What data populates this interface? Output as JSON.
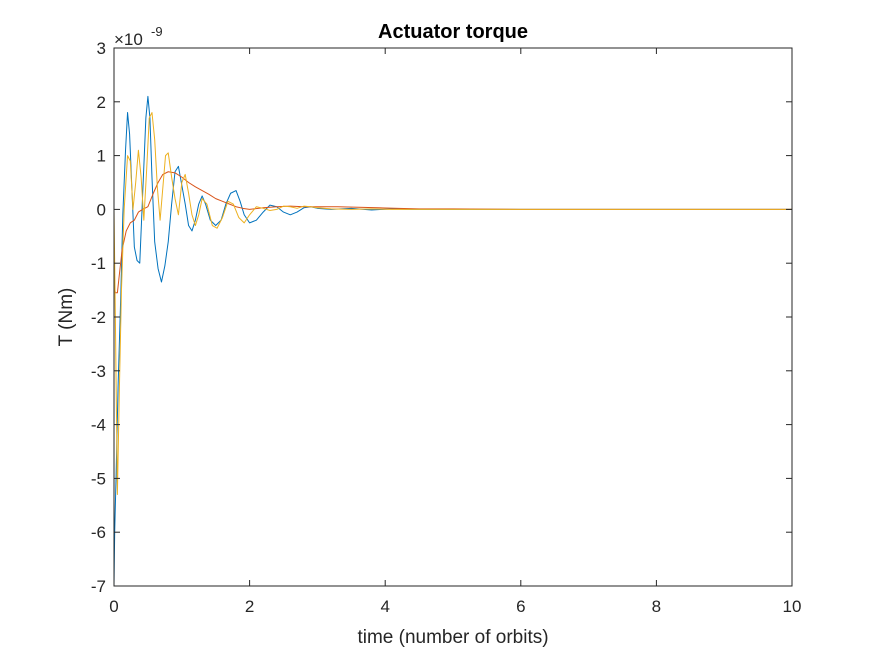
{
  "chart_data": {
    "type": "line",
    "title": "Actuator torque",
    "xlabel": "time (number of orbits)",
    "ylabel": "T (Nm)",
    "y_multiplier_label": "×10",
    "y_multiplier_exponent": "-9",
    "xlim": [
      0,
      10
    ],
    "ylim": [
      -7,
      3
    ],
    "x_ticks": [
      0,
      2,
      4,
      6,
      8,
      10
    ],
    "y_ticks": [
      3,
      2,
      1,
      0,
      -1,
      -2,
      -3,
      -4,
      -5,
      -6,
      -7
    ],
    "grid": false,
    "series": [
      {
        "color": "#0072BD",
        "x": [
          0,
          0.01,
          0.03,
          0.06,
          0.1,
          0.13,
          0.17,
          0.2,
          0.23,
          0.27,
          0.3,
          0.34,
          0.38,
          0.42,
          0.47,
          0.5,
          0.53,
          0.56,
          0.6,
          0.65,
          0.7,
          0.75,
          0.8,
          0.85,
          0.9,
          0.95,
          1.0,
          1.05,
          1.1,
          1.15,
          1.2,
          1.25,
          1.3,
          1.35,
          1.42,
          1.5,
          1.58,
          1.65,
          1.72,
          1.8,
          1.86,
          1.92,
          2.0,
          2.1,
          2.2,
          2.3,
          2.4,
          2.5,
          2.6,
          2.7,
          2.8,
          2.9,
          3.0,
          3.2,
          3.5,
          3.8,
          4.1,
          4.4,
          5.0,
          6.0,
          7.0,
          8.0,
          9.0,
          10.0
        ],
        "values": [
          -7.0,
          -6.0,
          -5.0,
          -3.3,
          -1.6,
          -0.1,
          1.1,
          1.8,
          1.4,
          0.2,
          -0.7,
          -0.95,
          -1.0,
          0.2,
          1.7,
          2.1,
          1.7,
          0.6,
          -0.6,
          -1.1,
          -1.35,
          -1.05,
          -0.6,
          0.1,
          0.7,
          0.8,
          0.45,
          0.1,
          -0.3,
          -0.4,
          -0.2,
          0.1,
          0.25,
          0.1,
          -0.2,
          -0.3,
          -0.2,
          0.1,
          0.3,
          0.35,
          0.15,
          -0.1,
          -0.25,
          -0.2,
          -0.05,
          0.08,
          0.05,
          -0.05,
          -0.1,
          -0.05,
          0.03,
          0.05,
          0.02,
          0.0,
          0.02,
          -0.01,
          0.01,
          0.0,
          0.0,
          0.0,
          0.0,
          0.0,
          0.0,
          0.0
        ]
      },
      {
        "color": "#D95319",
        "x": [
          0,
          0.02,
          0.05,
          0.08,
          0.12,
          0.18,
          0.24,
          0.3,
          0.36,
          0.42,
          0.5,
          0.58,
          0.65,
          0.72,
          0.8,
          0.9,
          1.0,
          1.1,
          1.2,
          1.3,
          1.4,
          1.5,
          1.6,
          1.7,
          1.8,
          1.9,
          2.0,
          2.2,
          2.4,
          2.6,
          2.8,
          3.0,
          3.3,
          3.6,
          3.9,
          4.2,
          4.5,
          5.0,
          6.0,
          7.0,
          8.0,
          9.0,
          10.0
        ],
        "values": [
          -1.4,
          -1.55,
          -1.55,
          -1.2,
          -0.75,
          -0.4,
          -0.25,
          -0.2,
          -0.05,
          0.0,
          0.05,
          0.3,
          0.5,
          0.65,
          0.7,
          0.68,
          0.6,
          0.5,
          0.42,
          0.35,
          0.28,
          0.2,
          0.15,
          0.1,
          0.05,
          0.02,
          0.0,
          0.03,
          0.05,
          0.06,
          0.05,
          0.05,
          0.05,
          0.04,
          0.03,
          0.02,
          0.01,
          0.01,
          0.0,
          0.0,
          0.0,
          0.0,
          0.0
        ]
      },
      {
        "color": "#EDB120",
        "x": [
          0,
          0.02,
          0.05,
          0.08,
          0.11,
          0.15,
          0.2,
          0.24,
          0.28,
          0.32,
          0.36,
          0.4,
          0.44,
          0.48,
          0.52,
          0.56,
          0.6,
          0.64,
          0.68,
          0.72,
          0.76,
          0.8,
          0.85,
          0.9,
          0.95,
          1.0,
          1.05,
          1.1,
          1.15,
          1.2,
          1.25,
          1.3,
          1.37,
          1.45,
          1.52,
          1.6,
          1.68,
          1.76,
          1.84,
          1.92,
          2.0,
          2.1,
          2.2,
          2.3,
          2.4,
          2.5,
          2.6,
          2.7,
          2.8,
          2.9,
          3.0,
          3.2,
          3.5,
          3.8,
          4.1,
          4.5,
          5.0,
          6.0,
          7.0,
          8.0,
          9.0,
          10.0
        ],
        "values": [
          0.0,
          -2.0,
          -5.3,
          -3.3,
          -1.5,
          0.0,
          1.0,
          0.9,
          0.0,
          0.5,
          1.1,
          0.6,
          -0.2,
          0.7,
          1.7,
          1.8,
          1.3,
          0.4,
          -0.2,
          0.4,
          1.0,
          1.05,
          0.6,
          0.2,
          -0.1,
          0.5,
          0.65,
          0.3,
          -0.1,
          -0.3,
          -0.1,
          0.2,
          0.1,
          -0.3,
          -0.35,
          -0.15,
          0.15,
          0.1,
          -0.15,
          -0.25,
          -0.1,
          0.05,
          0.02,
          -0.02,
          0.0,
          0.06,
          0.05,
          0.02,
          0.06,
          0.05,
          0.03,
          0.01,
          0.0,
          0.01,
          0.0,
          0.0,
          0.0,
          0.0,
          0.0,
          0.0,
          0.0,
          0.0
        ]
      }
    ]
  }
}
